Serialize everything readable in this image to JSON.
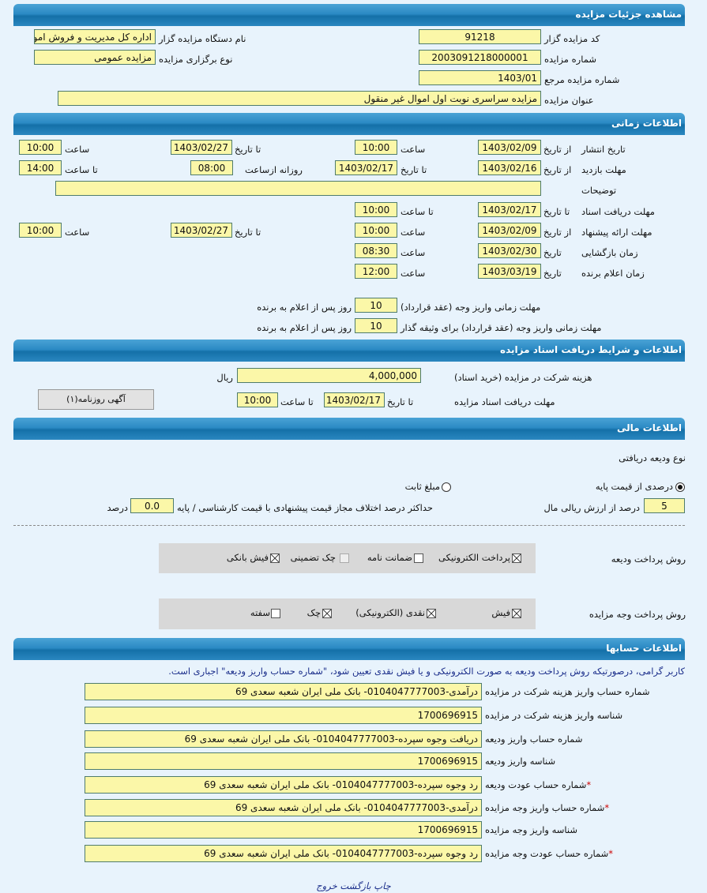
{
  "details": {
    "title": "مشاهده جزئیات مزایده",
    "code_label": "کد مزایده گزار",
    "code": "91218",
    "org_label": "نام دستگاه مزایده گزار",
    "org": "اداره کل مدیریت و فروش اموال",
    "number_label": "شماره مزایده",
    "number": "2003091218000001",
    "type_label": "نوع برگزاری مزایده",
    "type": "مزایده عمومی",
    "ref_label": "شماره مزایده مرجع",
    "ref": "1403/01",
    "subject_label": "عنوان مزایده",
    "subject": "مزایده سراسری نوبت اول اموال غیر منقول"
  },
  "timing": {
    "title": "اطلاعات زمانی",
    "from_date": "از تاریخ",
    "to_date": "تا تاریخ",
    "date": "تاریخ",
    "time": "ساعت",
    "to_time": "تا ساعت",
    "daily_from": "روزانه ازساعت",
    "publish": {
      "label": "تاریخ انتشار",
      "from": "1403/02/09",
      "from_time": "10:00",
      "to": "1403/02/27",
      "to_time": "10:00"
    },
    "visit": {
      "label": "مهلت بازدید",
      "from": "1403/02/16",
      "to": "1403/02/17",
      "daily_from": "08:00",
      "to_time": "14:00"
    },
    "notes": {
      "label": "توضیحات",
      "value": ""
    },
    "docs": {
      "label": "مهلت دریافت اسناد",
      "to": "1403/02/17",
      "to_time": "10:00"
    },
    "offer": {
      "label": "مهلت ارائه پیشنهاد",
      "from": "1403/02/09",
      "from_time": "10:00",
      "to": "1403/02/27",
      "to_time": "10:00"
    },
    "opening": {
      "label": "زمان بازگشایی",
      "date": "1403/02/30",
      "time": "08:30"
    },
    "winner": {
      "label": "زمان اعلام برنده",
      "date": "1403/03/19",
      "time": "12:00"
    },
    "pay1": {
      "label": "مهلت زمانی واریز وجه (عقد قرارداد)",
      "value": "10",
      "suffix": "روز پس از اعلام به برنده"
    },
    "pay2": {
      "label": "مهلت زمانی واریز وجه (عقد قرارداد) برای وثیقه گذار",
      "value": "10",
      "suffix": "روز پس از اعلام به برنده"
    }
  },
  "documents": {
    "title": "اطلاعات و شرایط دریافت اسناد مزایده",
    "fee_label": "هزینه شرکت در مزایده (خرید اسناد)",
    "fee": "4,000,000",
    "currency": "ریال",
    "deadline_label": "مهلت دریافت اسناد مزایده",
    "to_date": "تا تاریخ",
    "date": "1403/02/17",
    "to_time": "تا ساعت",
    "time": "10:00",
    "ad_button": "آگهی روزنامه(۱)"
  },
  "finance": {
    "title": "اطلاعات مالی",
    "deposit_type_label": "نوع ودیعه دریافتی",
    "radio_percent": "درصدی از قیمت پایه",
    "radio_fixed": "مبلغ ثابت",
    "selected": "radio_percent",
    "percent": "5",
    "percent_label": "درصد از ارزش ریالی مال",
    "max_diff_label": "حداکثر درصد اختلاف مجاز قیمت پیشنهادی با قیمت کارشناسی / پایه",
    "max_diff": "0.0",
    "max_diff_unit": "درصد",
    "deposit_method_label": "روش پرداخت ودیعه",
    "deposit_methods": [
      {
        "label": "پرداخت الکترونیکی",
        "checked": true
      },
      {
        "label": "ضمانت نامه",
        "checked": false
      },
      {
        "label": "چک تضمینی",
        "checked": false,
        "disabled": true
      },
      {
        "label": "فیش بانکی",
        "checked": true
      }
    ],
    "payment_method_label": "روش پرداخت وجه مزایده",
    "payment_methods": [
      {
        "label": "فیش",
        "checked": true
      },
      {
        "label": "نقدی (الکترونیکی)",
        "checked": true
      },
      {
        "label": "چک",
        "checked": true
      },
      {
        "label": "سفته",
        "checked": false
      }
    ]
  },
  "accounts": {
    "title": "اطلاعات حسابها",
    "notice": "کاربر گرامی، درصورتیکه روش پرداخت ودیعه به صورت الکترونیکی و یا فیش نقدی تعیین شود، \"شماره حساب واریز ودیعه\" اجباری است.",
    "rows": [
      {
        "label": "شماره حساب واریز هزینه شرکت در مزایده",
        "value": "درآمدی-0104047777003- بانک ملی ایران شعبه سعدی 69",
        "required": false
      },
      {
        "label": "شناسه واریز هزینه شرکت در مزایده",
        "value": "1700696915",
        "required": false
      },
      {
        "label": "شماره حساب واریز ودیعه",
        "value": "دریافت وجوه سپرده-0104047777003- بانک ملی ایران شعبه سعدی 69",
        "required": false
      },
      {
        "label": "شناسه واریز ودیعه",
        "value": "1700696915",
        "required": false
      },
      {
        "label": "شماره حساب عودت ودیعه",
        "value": "رد وجوه سپرده-0104047777003- بانک ملی ایران شعبه سعدی 69",
        "required": true
      },
      {
        "label": "شماره حساب واریز وجه مزایده",
        "value": "درآمدی-0104047777003- بانک ملی ایران شعبه سعدی 69",
        "required": true
      },
      {
        "label": "شناسه واریز وجه مزایده",
        "value": "1700696915",
        "required": false
      },
      {
        "label": "شماره حساب عودت وجه مزایده",
        "value": "رد وجوه سپرده-0104047777003- بانک ملی ایران شعبه سعدی 69",
        "required": true
      }
    ]
  },
  "footer": {
    "print": "چاپ",
    "back": "بازگشت",
    "exit": "خروج"
  },
  "colors": {
    "header": "#1f7db8",
    "field": "#fbf7a8",
    "background": "#e8f3fc"
  }
}
